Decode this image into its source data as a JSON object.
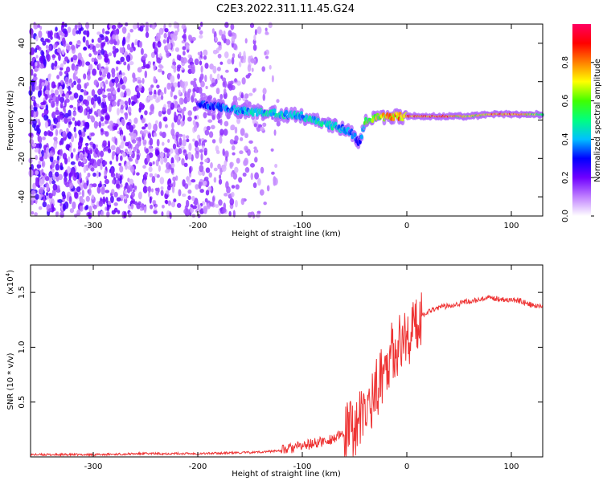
{
  "title": "C2E3.2022.311.11.45.G24",
  "chart_data": [
    {
      "type": "heatmap",
      "xlabel": "Height of straight line (km)",
      "ylabel": "Frequency (Hz)",
      "xlim": [
        -360,
        130
      ],
      "ylim": [
        -50,
        50
      ],
      "x_ticks": [
        -300,
        -200,
        -100,
        0,
        100
      ],
      "y_ticks": [
        -40,
        -20,
        0,
        20,
        40
      ],
      "colorbar": {
        "label": "Normalized spectral amplitude",
        "range": [
          0,
          1
        ],
        "ticks": [
          "0.0",
          "0.2",
          "0.4",
          "0.6",
          "0.8"
        ],
        "colors": [
          "#ffffff",
          "#c080ff",
          "#7000ff",
          "#0000ff",
          "#00c0ff",
          "#00ff80",
          "#40ff00",
          "#ffff00",
          "#ff8000",
          "#ff0000",
          "#ff0060"
        ]
      },
      "signal_trace": {
        "x": [
          -200,
          -180,
          -160,
          -140,
          -120,
          -100,
          -90,
          -80,
          -70,
          -60,
          -50,
          -45,
          -40,
          -30,
          -20,
          -10,
          0,
          20,
          40,
          60,
          80,
          100,
          120,
          130
        ],
        "freq": [
          8,
          7,
          5,
          4,
          3,
          2,
          0,
          -2,
          -3,
          -5,
          -8,
          -12,
          -1,
          1,
          2,
          2,
          2,
          2,
          2,
          2,
          3,
          3,
          3,
          3
        ],
        "amp": [
          0.35,
          0.4,
          0.45,
          0.5,
          0.5,
          0.45,
          0.5,
          0.55,
          0.5,
          0.45,
          0.4,
          0.35,
          0.6,
          0.75,
          0.85,
          0.85,
          0.9,
          0.95,
          0.9,
          0.75,
          0.9,
          0.95,
          0.75,
          0.7
        ]
      }
    },
    {
      "type": "line",
      "xlabel": "Height of straight line (km)",
      "ylabel": "SNR (10 * v/v)",
      "multiplier": "(x10",
      "multiplier_exp": "4",
      "xlim": [
        -360,
        130
      ],
      "ylim": [
        0,
        1.75
      ],
      "x_ticks": [
        -300,
        -200,
        -100,
        0,
        100
      ],
      "y_ticks": [
        "0.5",
        "1.0",
        "1.5"
      ],
      "series": [
        {
          "color": "#ee3333",
          "x": [
            -360,
            -300,
            -250,
            -200,
            -150,
            -130,
            -120,
            -110,
            -100,
            -90,
            -80,
            -70,
            -60,
            -50,
            -40,
            -35,
            -30,
            -25,
            -20,
            -15,
            -10,
            -5,
            0,
            5,
            10,
            15,
            20,
            25,
            30,
            40,
            50,
            60,
            70,
            80,
            90,
            100,
            110,
            120,
            130
          ],
          "y": [
            0.02,
            0.02,
            0.03,
            0.03,
            0.04,
            0.05,
            0.06,
            0.08,
            0.1,
            0.12,
            0.14,
            0.17,
            0.2,
            0.28,
            0.38,
            0.5,
            0.6,
            0.72,
            0.85,
            0.95,
            1.0,
            1.05,
            1.1,
            1.15,
            1.2,
            1.3,
            1.32,
            1.35,
            1.36,
            1.38,
            1.4,
            1.42,
            1.43,
            1.45,
            1.44,
            1.43,
            1.42,
            1.38,
            1.37
          ]
        }
      ]
    }
  ]
}
